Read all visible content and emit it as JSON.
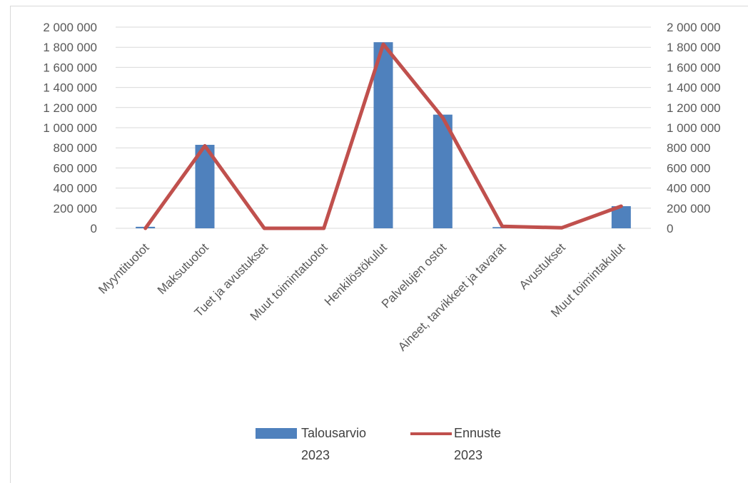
{
  "colors": {
    "bar": "#4f81bd",
    "line": "#c0504d",
    "grid": "#d9d9d9",
    "text": "#595959"
  },
  "chart_data": {
    "type": "bar",
    "categories": [
      "Myyntituotot",
      "Maksutuotot",
      "Tuet ja avustukset",
      "Muut toimintatuotot",
      "Henkilöstökulut",
      "Palvelujen ostot",
      "Aineet, tarvikkeet ja tavarat",
      "Avustukset",
      "Muut toimintakulut"
    ],
    "series": [
      {
        "name": "Talousarvio 2023",
        "kind": "bar",
        "axis": "left",
        "values": [
          15000,
          830000,
          0,
          0,
          1850000,
          1130000,
          12000,
          0,
          220000
        ]
      },
      {
        "name": "Ennuste 2023",
        "kind": "line",
        "axis": "right",
        "values": [
          0,
          820000,
          0,
          0,
          1830000,
          1100000,
          20000,
          5000,
          220000
        ]
      }
    ],
    "ylim": [
      0,
      2000000
    ],
    "ylim_right": [
      0,
      2000000
    ],
    "yticks": [
      "0",
      "200 000",
      "400 000",
      "600 000",
      "800 000",
      "1 000 000",
      "1 200 000",
      "1 400 000",
      "1 600 000",
      "1 800 000",
      "2 000 000"
    ],
    "yticks_right": [
      "0",
      "200 000",
      "400 000",
      "600 000",
      "800 000",
      "1 000 000",
      "1 200 000",
      "1 400 000",
      "1 600 000",
      "1 800 000",
      "2 000 000"
    ],
    "grid": true,
    "legend_position": "bottom",
    "legend": [
      {
        "line1": "Talousarvio",
        "line2": "2023"
      },
      {
        "line1": "Ennuste",
        "line2": "2023"
      }
    ]
  }
}
